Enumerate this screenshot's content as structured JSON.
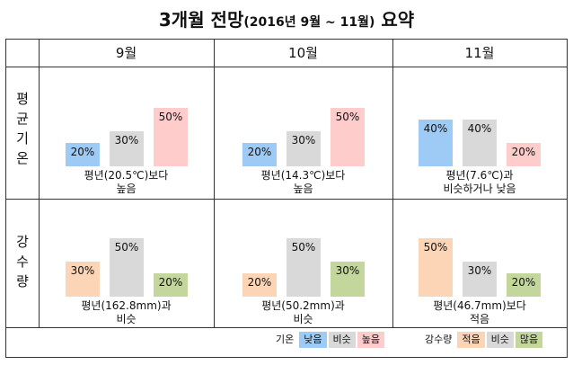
{
  "title": {
    "main": "3개월 전망",
    "period": "(2016년  9월 ~ 11월)",
    "suffix": "요약"
  },
  "months": [
    "9월",
    "10월",
    "11월"
  ],
  "rows": [
    {
      "label": [
        "평",
        "균",
        "기",
        "온"
      ]
    },
    {
      "label": [
        "강",
        "수",
        "량"
      ]
    }
  ],
  "colors": {
    "low": "#9ecbf5",
    "normal": "#d9d9d9",
    "high": "#ffcccc",
    "less": "#fbd5b5",
    "avg": "#d9d9d9",
    "more": "#c3d69b"
  },
  "temperature": [
    {
      "values": [
        "20%",
        "30%",
        "50%"
      ],
      "fractions": [
        0.2,
        0.3,
        0.5
      ],
      "caption": [
        "평년(20.5℃)보다",
        "높음"
      ]
    },
    {
      "values": [
        "20%",
        "30%",
        "50%"
      ],
      "fractions": [
        0.2,
        0.3,
        0.5
      ],
      "caption": [
        "평년(14.3℃)보다",
        "높음"
      ]
    },
    {
      "values": [
        "40%",
        "40%",
        "20%"
      ],
      "fractions": [
        0.4,
        0.4,
        0.2
      ],
      "caption": [
        "평년(7.6℃)과",
        "비슷하거나 낮음"
      ]
    }
  ],
  "precipitation": [
    {
      "values": [
        "30%",
        "50%",
        "20%"
      ],
      "fractions": [
        0.3,
        0.5,
        0.2
      ],
      "caption": [
        "평년(162.8mm)과",
        "비슷"
      ]
    },
    {
      "values": [
        "20%",
        "50%",
        "30%"
      ],
      "fractions": [
        0.2,
        0.5,
        0.3
      ],
      "caption": [
        "평년(50.2mm)과",
        "비슷"
      ]
    },
    {
      "values": [
        "50%",
        "30%",
        "20%"
      ],
      "fractions": [
        0.5,
        0.3,
        0.2
      ],
      "caption": [
        "평년(46.7mm)보다",
        "적음"
      ]
    }
  ],
  "legend": {
    "temp_label": "기온",
    "temp_items": [
      "낮음",
      "비슷",
      "높음"
    ],
    "precip_label": "강수량",
    "precip_items": [
      "적음",
      "비슷",
      "많음"
    ]
  }
}
